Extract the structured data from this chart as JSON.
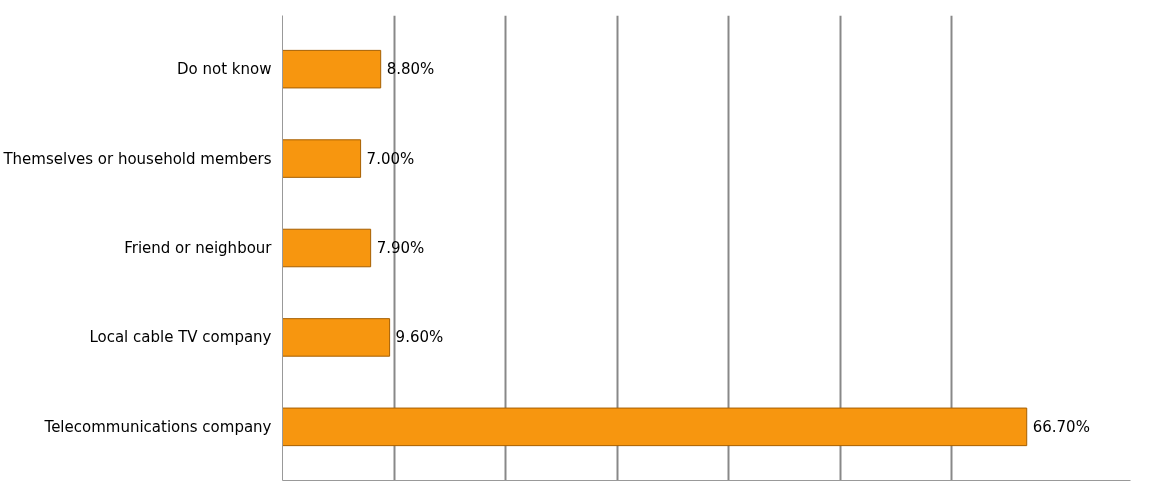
{
  "chart_data": {
    "type": "bar",
    "orientation": "horizontal",
    "categories": [
      "Do not know",
      "Themselves or household members",
      "Friend or neighbour",
      "Local cable TV company",
      "Telecommunications company"
    ],
    "values": [
      8.8,
      7.0,
      7.9,
      9.6,
      66.7
    ],
    "value_labels": [
      "8.80%",
      "7.00%",
      "7.90%",
      "9.60%",
      "66.70%"
    ],
    "color": "#f7960f",
    "xlim": [
      0,
      76
    ],
    "xticks": [
      {
        "value": 0,
        "label": null
      },
      {
        "value": 10,
        "label": null
      },
      {
        "value": 20,
        "label": null
      },
      {
        "value": 30,
        "label": null
      },
      {
        "value": 40,
        "label": null
      },
      {
        "value": 50,
        "label": null
      },
      {
        "value": 60,
        "label": null
      }
    ],
    "grid": "x",
    "tick_labels": "y"
  }
}
